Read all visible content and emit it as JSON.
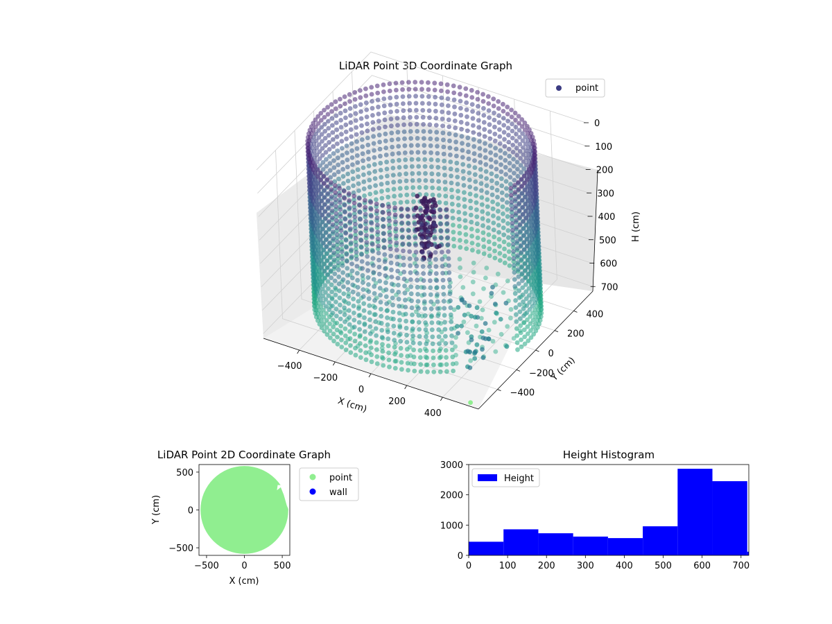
{
  "figure": {
    "background": "#ffffff"
  },
  "chart_data": [
    {
      "type": "scatter",
      "projection": "3d",
      "title": "LiDAR Point 3D Coordinate Graph",
      "xlabel": "X (cm)",
      "ylabel": "Y (cm)",
      "zlabel": "H (cm)",
      "xlim": [
        -600,
        600
      ],
      "ylim": [
        -600,
        600
      ],
      "zlim": [
        0,
        720
      ],
      "z_inverted": true,
      "xticks": [
        -400,
        -200,
        0,
        200,
        400
      ],
      "yticks": [
        -400,
        -200,
        0,
        200,
        400
      ],
      "zticks": [
        0,
        100,
        200,
        300,
        400,
        500,
        600,
        700
      ],
      "legend": {
        "placement": "upper-right",
        "entries": [
          {
            "label": "point",
            "color": "#3b3b82"
          }
        ]
      },
      "colormap": "viridis",
      "grid": true,
      "structures": [
        {
          "shape": "cylindrical wall",
          "radius_cm": 560,
          "h_min": 0,
          "h_max": 700
        },
        {
          "shape": "floor disk",
          "radius_cm": 520,
          "h": 700
        },
        {
          "shape": "column cluster",
          "x": 100,
          "y": -150,
          "h_min": 120,
          "h_max": 380
        }
      ]
    },
    {
      "type": "scatter",
      "title": "LiDAR Point 2D Coordinate Graph",
      "xlabel": "X (cm)",
      "ylabel": "Y (cm)",
      "xlim": [
        -600,
        600
      ],
      "ylim": [
        -600,
        600
      ],
      "xticks": [
        -500,
        0,
        500
      ],
      "yticks": [
        -500,
        0,
        500
      ],
      "series": [
        {
          "name": "point",
          "color": "#90ee90",
          "shape": "filled circle",
          "radius_cm": 580
        },
        {
          "name": "wall",
          "color": "#0000ff",
          "points": []
        }
      ],
      "legend": {
        "placement": "outside-right"
      }
    },
    {
      "type": "bar",
      "title": "Height Histogram",
      "xlabel": "",
      "ylabel": "",
      "xlim": [
        0,
        720
      ],
      "ylim": [
        0,
        3000
      ],
      "xticks": [
        0,
        100,
        200,
        300,
        400,
        500,
        600,
        700
      ],
      "yticks": [
        0,
        1000,
        2000,
        3000
      ],
      "bin_edges": [
        0,
        89.5,
        179,
        268.5,
        358,
        447.5,
        537,
        626.5,
        716
      ],
      "values": [
        450,
        860,
        730,
        620,
        570,
        960,
        2860,
        2450
      ],
      "series": [
        {
          "name": "Height",
          "color": "#0000ff"
        }
      ],
      "legend": {
        "placement": "upper-left"
      }
    }
  ]
}
